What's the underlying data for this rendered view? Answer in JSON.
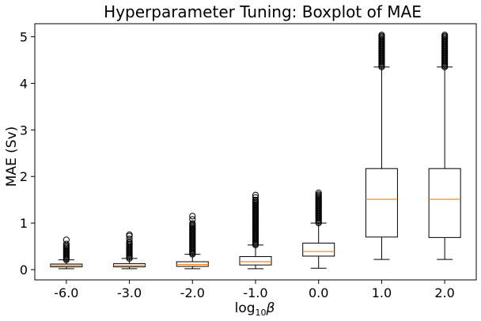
{
  "chart_data": {
    "type": "boxplot",
    "title": "Hyperparameter Tuning: Boxplot of MAE",
    "ylabel": "MAE (Sv)",
    "xlabel_base": "log",
    "xlabel_sub": "10",
    "xlabel_var": "β",
    "ylim": [
      -0.22,
      5.28
    ],
    "yticks": [
      0,
      1,
      2,
      3,
      4,
      5
    ],
    "grid": false,
    "colors": {
      "box": "#000000",
      "median": "#ff7f0e",
      "flier": "#000000"
    },
    "categories": [
      "-6.0",
      "-3.0",
      "-2.0",
      "-1.0",
      "0.0",
      "1.0",
      "2.0"
    ],
    "boxes": [
      {
        "label": "-6.0",
        "whisker_low": 0.02,
        "q1": 0.06,
        "median": 0.09,
        "q3": 0.12,
        "whisker_high": 0.21,
        "fliers_dense": [
          0.21,
          0.52
        ],
        "fliers_sparse": [
          0.55,
          0.64
        ]
      },
      {
        "label": "-3.0",
        "whisker_low": 0.02,
        "q1": 0.06,
        "median": 0.09,
        "q3": 0.13,
        "whisker_high": 0.24,
        "fliers_dense": [
          0.24,
          0.62
        ],
        "fliers_sparse": [
          0.66,
          0.72,
          0.75
        ]
      },
      {
        "label": "-2.0",
        "whisker_low": 0.02,
        "q1": 0.07,
        "median": 0.11,
        "q3": 0.17,
        "whisker_high": 0.33,
        "fliers_dense": [
          0.33,
          1.0
        ],
        "fliers_sparse": [
          1.08,
          1.15
        ]
      },
      {
        "label": "-1.0",
        "whisker_low": 0.02,
        "q1": 0.1,
        "median": 0.17,
        "q3": 0.28,
        "whisker_high": 0.53,
        "fliers_dense": [
          0.53,
          1.5
        ],
        "fliers_sparse": [
          1.55,
          1.6
        ]
      },
      {
        "label": "0.0",
        "whisker_low": 0.03,
        "q1": 0.29,
        "median": 0.39,
        "q3": 0.57,
        "whisker_high": 1.0,
        "fliers_dense": [
          1.0,
          1.62
        ],
        "fliers_sparse": [
          1.65
        ]
      },
      {
        "label": "1.0",
        "whisker_low": 0.22,
        "q1": 0.7,
        "median": 1.51,
        "q3": 2.17,
        "whisker_high": 4.35,
        "fliers_dense": [
          4.35,
          5.06
        ],
        "fliers_sparse": []
      },
      {
        "label": "2.0",
        "whisker_low": 0.22,
        "q1": 0.69,
        "median": 1.51,
        "q3": 2.17,
        "whisker_high": 4.35,
        "fliers_dense": [
          4.35,
          5.06
        ],
        "fliers_sparse": []
      }
    ]
  }
}
